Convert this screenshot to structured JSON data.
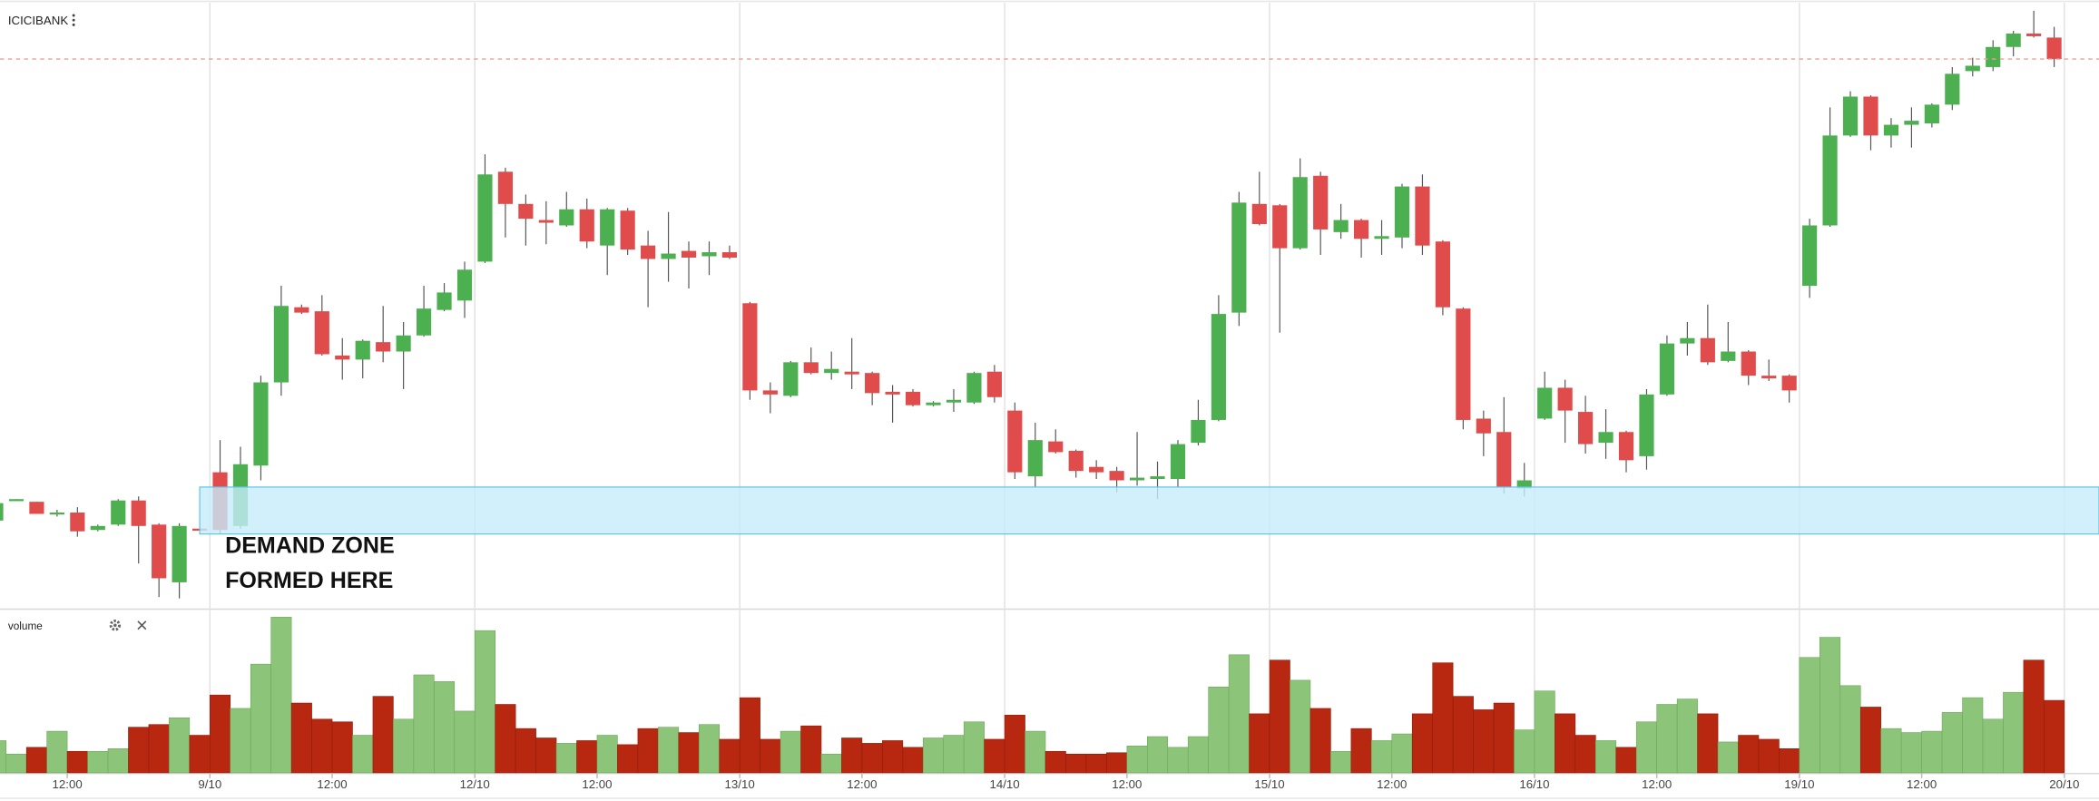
{
  "chart_data": {
    "type": "candlestick",
    "title": "ICICIBANK",
    "up_color": "#4caf50",
    "down_color": "#e04b4b",
    "open": [
      72,
      87,
      86,
      77,
      78,
      65,
      69,
      87,
      69,
      26,
      66,
      108,
      68,
      113,
      175,
      231,
      228,
      195,
      192,
      205,
      198,
      210,
      229,
      236,
      265,
      332,
      308,
      296,
      292,
      304,
      277,
      303,
      277,
      267,
      273,
      269,
      272,
      234,
      169,
      165,
      190,
      182,
      183,
      182,
      168,
      168,
      158,
      160,
      160,
      183,
      154,
      105,
      131,
      124,
      112,
      109,
      102,
      103,
      103,
      130,
      147,
      227,
      308,
      307,
      275,
      329,
      287,
      296,
      282,
      283,
      321,
      280,
      230,
      148,
      138,
      96,
      148,
      171,
      153,
      130,
      138,
      120,
      166,
      204,
      208,
      191,
      198,
      180,
      180,
      247,
      292,
      359,
      388,
      359,
      367,
      368,
      382,
      407,
      410,
      425,
      435,
      432
    ],
    "high": [
      86,
      88,
      86,
      80,
      82,
      69,
      88,
      90,
      70,
      70,
      67,
      132,
      127,
      180,
      247,
      233,
      240,
      208,
      207,
      232,
      220,
      247,
      249,
      265,
      345,
      335,
      315,
      310,
      317,
      312,
      305,
      305,
      288,
      302,
      280,
      280,
      277,
      235,
      175,
      191,
      201,
      198,
      208,
      183,
      173,
      170,
      161,
      170,
      183,
      188,
      160,
      145,
      140,
      125,
      117,
      112,
      138,
      116,
      132,
      162,
      240,
      317,
      332,
      308,
      342,
      332,
      308,
      297,
      296,
      323,
      330,
      281,
      231,
      154,
      164,
      115,
      183,
      177,
      165,
      155,
      139,
      170,
      210,
      220,
      233,
      220,
      199,
      192,
      181,
      297,
      380,
      392,
      389,
      372,
      380,
      383,
      410,
      417,
      430,
      437,
      452,
      440
    ],
    "low": [
      71,
      87,
      77,
      75,
      60,
      64,
      68,
      40,
      15,
      14,
      64,
      62,
      66,
      102,
      165,
      226,
      195,
      177,
      178,
      190,
      170,
      209,
      228,
      223,
      264,
      283,
      277,
      278,
      291,
      275,
      255,
      270,
      231,
      250,
      245,
      255,
      267,
      162,
      152,
      164,
      181,
      177,
      170,
      158,
      145,
      157,
      157,
      153,
      159,
      160,
      103,
      97,
      122,
      104,
      103,
      93,
      98,
      88,
      97,
      128,
      146,
      217,
      292,
      212,
      274,
      270,
      282,
      268,
      270,
      275,
      270,
      225,
      140,
      120,
      92,
      90,
      147,
      130,
      122,
      118,
      108,
      110,
      165,
      195,
      188,
      190,
      173,
      176,
      160,
      238,
      291,
      358,
      348,
      350,
      350,
      365,
      378,
      403,
      407,
      418,
      432,
      410
    ],
    "close": [
      85,
      88,
      77,
      78,
      64,
      68,
      87,
      68,
      29,
      68,
      65,
      65,
      114,
      175,
      232,
      227,
      196,
      192,
      206,
      198,
      210,
      230,
      242,
      259,
      330,
      308,
      297,
      294,
      304,
      280,
      304,
      274,
      267,
      271,
      268,
      272,
      268,
      169,
      166,
      190,
      182,
      185,
      181,
      167,
      166,
      158,
      160,
      162,
      182,
      164,
      108,
      132,
      123,
      109,
      108,
      102,
      104,
      105,
      129,
      147,
      226,
      309,
      293,
      275,
      328,
      289,
      296,
      282,
      284,
      321,
      277,
      231,
      147,
      137,
      97,
      102,
      171,
      154,
      129,
      138,
      117,
      166,
      204,
      208,
      190,
      198,
      180,
      178,
      169,
      292,
      359,
      388,
      359,
      367,
      370,
      382,
      405,
      411,
      425,
      435,
      433,
      416
    ],
    "ylim": [
      5,
      460
    ],
    "xlim": [
      0.2,
      103.2
    ],
    "xticks": [
      {
        "value": 3.5,
        "label": "12:00"
      },
      {
        "value": 10.5,
        "label": "9/10"
      },
      {
        "value": 16.5,
        "label": "12:00"
      },
      {
        "value": 23.5,
        "label": "12/10"
      },
      {
        "value": 29.5,
        "label": "12:00"
      },
      {
        "value": 36.5,
        "label": "13/10"
      },
      {
        "value": 42.5,
        "label": "12:00"
      },
      {
        "value": 49.5,
        "label": "14/10"
      },
      {
        "value": 55.5,
        "label": "12:00"
      },
      {
        "value": 62.5,
        "label": "15/10"
      },
      {
        "value": 68.5,
        "label": "12:00"
      },
      {
        "value": 75.5,
        "label": "16/10"
      },
      {
        "value": 81.5,
        "label": "12:00"
      },
      {
        "value": 88.5,
        "label": "19/10"
      },
      {
        "value": 94.5,
        "label": "12:00"
      },
      {
        "value": 101.5,
        "label": "20/10"
      }
    ],
    "price_line": 416,
    "price_line_color": "#e8a090",
    "zone": {
      "lines": [
        "DEMAND ZONE",
        "FORMED HERE"
      ],
      "start": 10,
      "top": 97,
      "bottom": 62,
      "color": "#c6ecfa",
      "border": "#5bc4e6"
    },
    "volume": {
      "name": "volume",
      "up_color": "#8cc47a",
      "down_color": "#b8270f",
      "ylim": [
        0,
        121
      ],
      "values": [
        24,
        14,
        19,
        31,
        16,
        16,
        18,
        34,
        36,
        41,
        28,
        58,
        48,
        81,
        116,
        52,
        40,
        38,
        28,
        57,
        40,
        73,
        68,
        46,
        106,
        51,
        33,
        26,
        22,
        24,
        28,
        21,
        33,
        34,
        30,
        36,
        25,
        56,
        25,
        31,
        35,
        14,
        26,
        22,
        24,
        19,
        26,
        28,
        38,
        25,
        43,
        31,
        16,
        14,
        14,
        15,
        20,
        27,
        19,
        27,
        64,
        88,
        44,
        84,
        69,
        48,
        16,
        33,
        24,
        29,
        44,
        82,
        57,
        47,
        52,
        32,
        61,
        44,
        28,
        24,
        19,
        38,
        51,
        55,
        44,
        23,
        28,
        25,
        18,
        86,
        101,
        65,
        49,
        33,
        30,
        31,
        45,
        56,
        40,
        60,
        84,
        54
      ]
    }
  }
}
